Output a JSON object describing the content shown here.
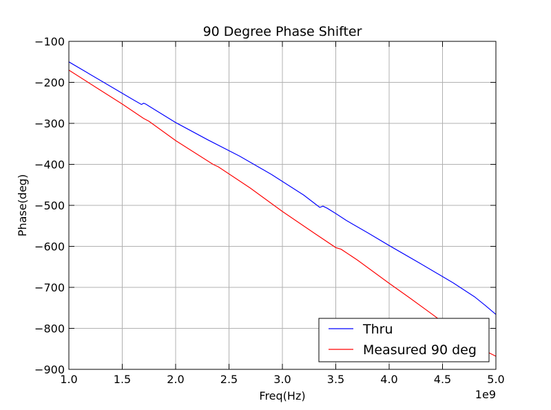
{
  "chart_data": {
    "type": "line",
    "title": "90 Degree Phase Shifter",
    "xlabel": "Freq(Hz)",
    "ylabel": "Phase(deg)",
    "x_offset_label": "1e9",
    "xlim": [
      1.0,
      5.0
    ],
    "ylim": [
      -900,
      -100
    ],
    "x_ticks": [
      1.0,
      1.5,
      2.0,
      2.5,
      3.0,
      3.5,
      4.0,
      4.5,
      5.0
    ],
    "x_tick_labels": [
      "1.0",
      "1.5",
      "2.0",
      "2.5",
      "3.0",
      "3.5",
      "4.0",
      "4.5",
      "5.0"
    ],
    "y_ticks": [
      -900,
      -800,
      -700,
      -600,
      -500,
      -400,
      -300,
      -200,
      -100
    ],
    "y_tick_labels": [
      "−900",
      "−800",
      "−700",
      "−600",
      "−500",
      "−400",
      "−300",
      "−200",
      "−100"
    ],
    "grid": true,
    "legend_position": "bottom-right",
    "series": [
      {
        "name": "Thru",
        "color": "#0000ff",
        "points": [
          [
            1.0,
            -150
          ],
          [
            1.3,
            -196
          ],
          [
            1.6,
            -242
          ],
          [
            1.68,
            -254
          ],
          [
            1.7,
            -251
          ],
          [
            1.72,
            -253
          ],
          [
            1.75,
            -258
          ],
          [
            2.0,
            -298
          ],
          [
            2.3,
            -340
          ],
          [
            2.6,
            -380
          ],
          [
            2.9,
            -425
          ],
          [
            3.2,
            -475
          ],
          [
            3.3,
            -495
          ],
          [
            3.35,
            -505
          ],
          [
            3.38,
            -502
          ],
          [
            3.42,
            -507
          ],
          [
            3.5,
            -520
          ],
          [
            3.6,
            -537
          ],
          [
            3.8,
            -567
          ],
          [
            4.0,
            -598
          ],
          [
            4.3,
            -643
          ],
          [
            4.6,
            -689
          ],
          [
            4.8,
            -723
          ],
          [
            4.9,
            -744
          ],
          [
            5.0,
            -766
          ]
        ]
      },
      {
        "name": "Measured 90 deg",
        "color": "#ff0000",
        "points": [
          [
            1.0,
            -170
          ],
          [
            1.3,
            -220
          ],
          [
            1.5,
            -253
          ],
          [
            1.7,
            -288
          ],
          [
            1.75,
            -295
          ],
          [
            2.0,
            -342
          ],
          [
            2.35,
            -400
          ],
          [
            2.4,
            -406
          ],
          [
            2.7,
            -458
          ],
          [
            3.0,
            -515
          ],
          [
            3.3,
            -568
          ],
          [
            3.5,
            -603
          ],
          [
            3.55,
            -607
          ],
          [
            3.7,
            -633
          ],
          [
            4.0,
            -690
          ],
          [
            4.2,
            -727
          ],
          [
            4.4,
            -765
          ],
          [
            4.6,
            -804
          ],
          [
            4.8,
            -842
          ],
          [
            5.0,
            -868
          ]
        ]
      }
    ]
  }
}
